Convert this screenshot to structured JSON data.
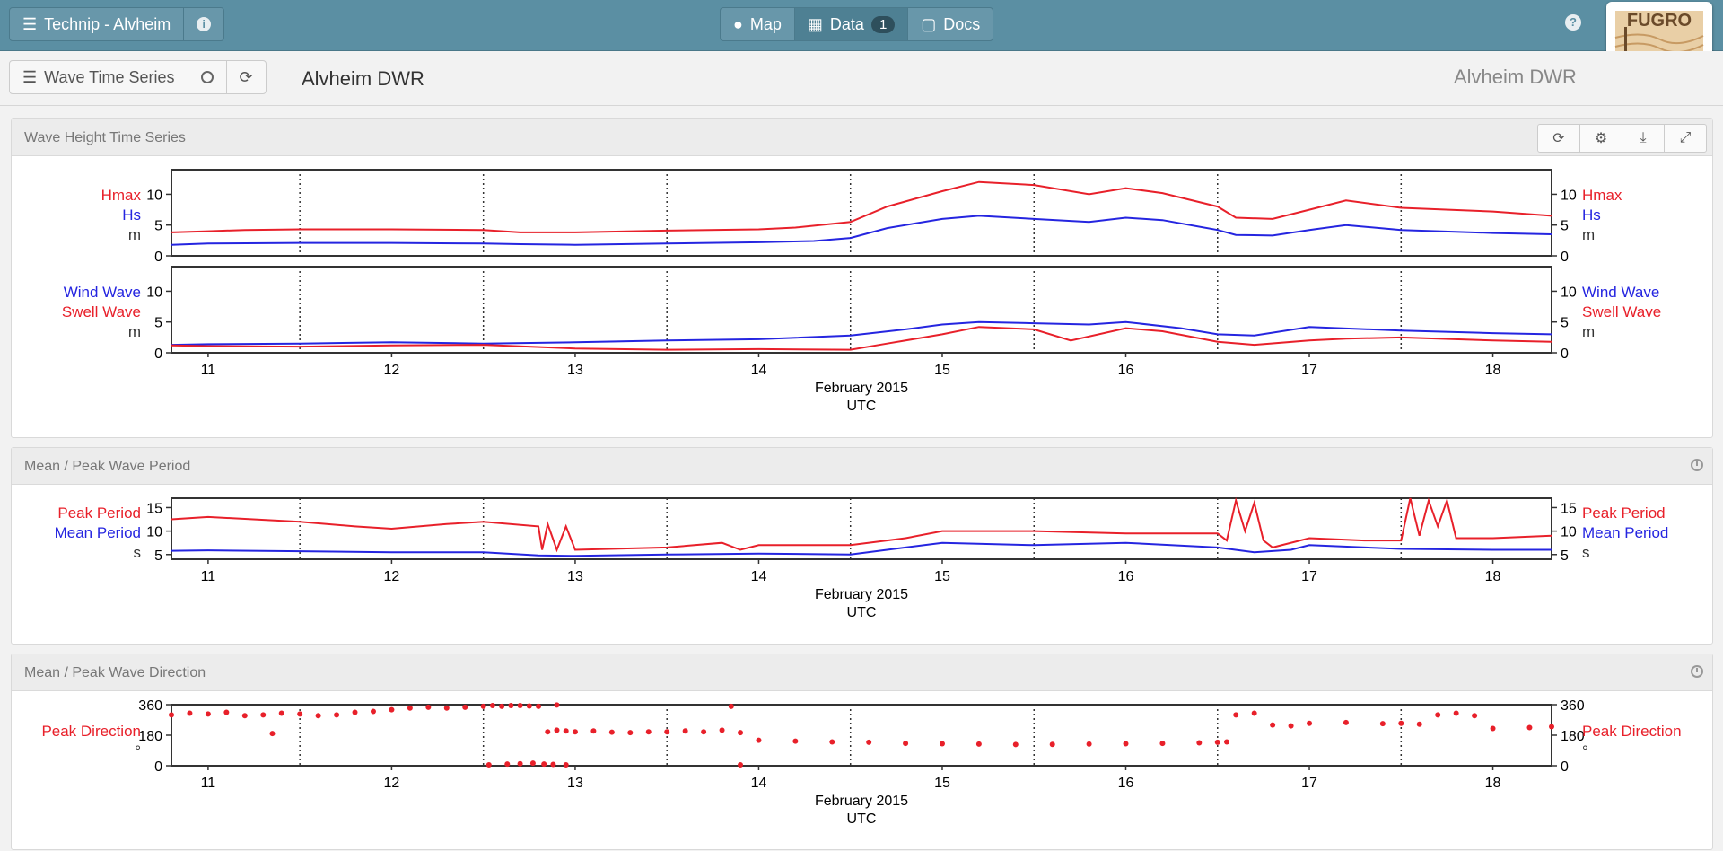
{
  "nav": {
    "project": "Technip - Alvheim",
    "tabs": [
      {
        "label": "Map",
        "icon": "globe-icon"
      },
      {
        "label": "Data",
        "icon": "grid-icon",
        "badge": "1",
        "active": true
      },
      {
        "label": "Docs",
        "icon": "document-icon"
      }
    ],
    "help": "?",
    "logo_text": "FUGRO"
  },
  "toolbar": {
    "view_label": "Wave Time Series",
    "station_title": "Alvheim DWR",
    "station_title_right": "Alvheim DWR"
  },
  "panels": {
    "wave_height": {
      "title": "Wave Height Time Series"
    },
    "wave_period": {
      "title": "Mean / Peak Wave Period"
    },
    "wave_direction": {
      "title": "Mean / Peak Wave Direction"
    }
  },
  "colors": {
    "red": "#e8202a",
    "blue": "#2525e0"
  },
  "chart_data": [
    {
      "type": "line",
      "title": "Wave Height Time Series",
      "xlabel": "February 2015",
      "xlabel2": "UTC",
      "xlim": [
        10.8,
        18.32
      ],
      "xticks": [
        "11",
        "12",
        "13",
        "14",
        "15",
        "16",
        "17",
        "18"
      ],
      "subplots": [
        {
          "ylim": [
            0,
            14
          ],
          "yticks": [
            "0",
            "5",
            "10"
          ],
          "labels_left": [
            "Hmax",
            "Hs",
            "m"
          ],
          "labels_right": [
            "Hmax",
            "Hs",
            "m"
          ],
          "series": [
            {
              "name": "Hmax",
              "color": "#e8202a",
              "x": [
                10.8,
                11.0,
                11.2,
                11.5,
                12.0,
                12.5,
                12.7,
                13.0,
                13.5,
                14.0,
                14.2,
                14.5,
                14.7,
                15.0,
                15.2,
                15.5,
                15.8,
                16.0,
                16.2,
                16.5,
                16.6,
                16.8,
                17.0,
                17.2,
                17.5,
                18.0,
                18.32
              ],
              "y": [
                3.8,
                4.0,
                4.2,
                4.3,
                4.3,
                4.2,
                3.8,
                3.8,
                4.1,
                4.3,
                4.6,
                5.5,
                8.0,
                10.5,
                12.0,
                11.5,
                10.0,
                11.0,
                10.2,
                8.0,
                6.2,
                6.0,
                7.5,
                9.0,
                7.8,
                7.2,
                6.5
              ]
            },
            {
              "name": "Hs",
              "color": "#2525e0",
              "x": [
                10.8,
                11.0,
                11.5,
                12.0,
                12.5,
                12.7,
                13.0,
                13.5,
                14.0,
                14.3,
                14.5,
                14.7,
                15.0,
                15.2,
                15.5,
                15.8,
                16.0,
                16.2,
                16.5,
                16.6,
                16.8,
                17.0,
                17.2,
                17.5,
                18.0,
                18.32
              ],
              "y": [
                1.8,
                2.0,
                2.1,
                2.1,
                2.0,
                1.9,
                1.8,
                2.0,
                2.2,
                2.4,
                2.9,
                4.5,
                6.0,
                6.5,
                6.0,
                5.5,
                6.2,
                5.8,
                4.2,
                3.4,
                3.3,
                4.2,
                5.0,
                4.2,
                3.7,
                3.5
              ]
            }
          ]
        },
        {
          "ylim": [
            0,
            14
          ],
          "yticks": [
            "0",
            "5",
            "10"
          ],
          "labels_left": [
            "Wind Wave",
            "Swell Wave",
            "m"
          ],
          "labels_right": [
            "Wind Wave",
            "Swell Wave",
            "m"
          ],
          "series": [
            {
              "name": "Wind Wave",
              "color": "#2525e0",
              "x": [
                10.8,
                11.0,
                11.5,
                12.0,
                12.5,
                13.0,
                13.5,
                14.0,
                14.5,
                14.8,
                15.0,
                15.2,
                15.5,
                15.8,
                16.0,
                16.3,
                16.5,
                16.7,
                17.0,
                17.5,
                18.0,
                18.32
              ],
              "y": [
                1.3,
                1.4,
                1.5,
                1.7,
                1.5,
                1.7,
                2.0,
                2.2,
                2.8,
                3.8,
                4.6,
                5.0,
                4.8,
                4.6,
                5.0,
                4.0,
                3.0,
                2.8,
                4.2,
                3.6,
                3.2,
                3.0
              ]
            },
            {
              "name": "Swell Wave",
              "color": "#e8202a",
              "x": [
                10.8,
                11.0,
                11.5,
                12.0,
                12.5,
                13.0,
                13.5,
                14.0,
                14.5,
                14.7,
                15.0,
                15.2,
                15.5,
                15.7,
                16.0,
                16.2,
                16.5,
                16.7,
                17.0,
                17.2,
                17.5,
                18.0,
                18.32
              ],
              "y": [
                1.2,
                1.1,
                1.0,
                1.2,
                1.3,
                0.7,
                0.5,
                0.6,
                0.5,
                1.5,
                3.0,
                4.2,
                3.8,
                2.0,
                4.0,
                3.5,
                1.8,
                1.3,
                2.0,
                2.3,
                2.5,
                2.0,
                1.8
              ]
            }
          ]
        }
      ]
    },
    {
      "type": "line",
      "title": "Mean / Peak Wave Period",
      "xlabel": "February 2015",
      "xlabel2": "UTC",
      "xlim": [
        10.8,
        18.32
      ],
      "xticks": [
        "11",
        "12",
        "13",
        "14",
        "15",
        "16",
        "17",
        "18"
      ],
      "ylim": [
        4,
        17
      ],
      "yticks": [
        "5",
        "10",
        "15"
      ],
      "labels_left": [
        "Peak Period",
        "Mean Period",
        "s"
      ],
      "labels_right": [
        "Peak Period",
        "Mean Period",
        "s"
      ],
      "series": [
        {
          "name": "Peak Period",
          "color": "#e8202a",
          "x": [
            10.8,
            11.0,
            11.5,
            11.8,
            12.0,
            12.3,
            12.5,
            12.8,
            12.82,
            12.85,
            12.9,
            12.95,
            13.0,
            13.5,
            13.8,
            13.9,
            14.0,
            14.3,
            14.5,
            14.8,
            15.0,
            15.5,
            16.0,
            16.5,
            16.55,
            16.6,
            16.65,
            16.7,
            16.75,
            16.8,
            17.0,
            17.3,
            17.5,
            17.55,
            17.6,
            17.65,
            17.7,
            17.75,
            17.8,
            18.0,
            18.32
          ],
          "y": [
            12.5,
            13.0,
            12.0,
            11.0,
            10.5,
            11.5,
            12.0,
            11.0,
            6.0,
            11.5,
            6.0,
            11.0,
            6.0,
            6.5,
            7.5,
            6.0,
            7.0,
            7.0,
            7.0,
            8.5,
            10.0,
            10.0,
            9.5,
            9.5,
            8.0,
            16.5,
            10.0,
            16.0,
            8.0,
            6.5,
            8.5,
            8.0,
            8.0,
            17.0,
            9.0,
            16.5,
            11.0,
            16.5,
            8.5,
            8.5,
            9.0
          ]
        },
        {
          "name": "Mean Period",
          "color": "#2525e0",
          "x": [
            10.8,
            11.0,
            11.5,
            12.0,
            12.5,
            12.8,
            13.0,
            13.5,
            14.0,
            14.5,
            14.8,
            15.0,
            15.5,
            16.0,
            16.5,
            16.7,
            16.9,
            17.0,
            17.5,
            18.0,
            18.32
          ],
          "y": [
            5.8,
            5.9,
            5.7,
            5.5,
            5.5,
            4.8,
            4.7,
            5.0,
            5.2,
            5.0,
            6.5,
            7.5,
            7.0,
            7.5,
            6.5,
            5.5,
            6.0,
            7.0,
            6.2,
            6.0,
            6.0
          ]
        }
      ]
    },
    {
      "type": "scatter",
      "title": "Mean / Peak Wave Direction",
      "xlabel": "February 2015",
      "xlabel2": "UTC",
      "xlim": [
        10.8,
        18.32
      ],
      "xticks": [
        "11",
        "12",
        "13",
        "14",
        "15",
        "16",
        "17",
        "18"
      ],
      "ylim": [
        0,
        360
      ],
      "yticks": [
        "0",
        "180",
        "360"
      ],
      "labels_left": [
        "Peak Direction",
        "°"
      ],
      "labels_right": [
        "Peak Direction",
        "°"
      ],
      "series": [
        {
          "name": "Peak Direction",
          "color": "#e8202a",
          "x": [
            10.8,
            10.9,
            11.0,
            11.1,
            11.2,
            11.3,
            11.4,
            11.5,
            11.6,
            11.7,
            11.8,
            11.9,
            12.0,
            12.1,
            12.2,
            12.3,
            12.4,
            12.5,
            12.55,
            12.6,
            12.7,
            12.8,
            12.85,
            12.9,
            12.95,
            13.0,
            13.1,
            13.2,
            13.3,
            13.4,
            13.5,
            13.6,
            13.7,
            13.8,
            13.9,
            14.0,
            14.2,
            14.4,
            14.6,
            14.8,
            15.0,
            15.2,
            15.4,
            15.6,
            15.8,
            16.0,
            16.2,
            16.4,
            16.5,
            16.55,
            16.6,
            16.7,
            16.8,
            16.9,
            17.0,
            17.2,
            17.4,
            17.5,
            17.6,
            17.7,
            17.8,
            17.9,
            18.0,
            18.2,
            18.32
          ],
          "y": [
            300,
            310,
            305,
            315,
            295,
            300,
            310,
            305,
            295,
            300,
            315,
            320,
            330,
            340,
            345,
            340,
            345,
            350,
            355,
            350,
            355,
            350,
            200,
            210,
            205,
            200,
            205,
            198,
            195,
            200,
            200,
            205,
            200,
            210,
            195,
            150,
            145,
            140,
            138,
            132,
            130,
            128,
            125,
            126,
            128,
            130,
            132,
            135,
            138,
            140,
            300,
            310,
            240,
            235,
            250,
            255,
            248,
            250,
            245,
            300,
            310,
            295,
            220,
            225,
            230
          ]
        },
        {
          "name": "Peak Direction outliers",
          "color": "#e8202a",
          "x": [
            11.35,
            12.53,
            12.63,
            12.7,
            12.77,
            12.83,
            12.88,
            12.95,
            13.85,
            13.9,
            12.65,
            12.75,
            12.9
          ],
          "y": [
            190,
            5,
            10,
            12,
            15,
            10,
            8,
            5,
            350,
            5,
            355,
            352,
            358
          ]
        }
      ]
    }
  ]
}
